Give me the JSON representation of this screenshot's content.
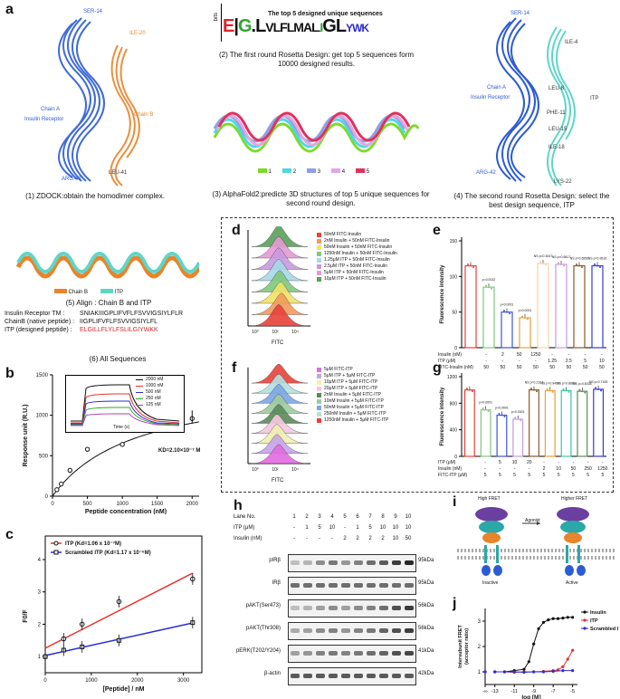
{
  "panels": {
    "a": {
      "label": "a",
      "fig1": {
        "caption": "(1) ZDOCK:obtain the homodimer  complex.",
        "labels": [
          "SER-14",
          "ILE-20",
          "Chain A",
          "Insulin Receptor",
          "Chain B",
          "ARG-42",
          "LEU-41"
        ]
      },
      "fig2": {
        "title": "The top 5 designed unique sequences",
        "caption": "(2) The first round Rosetta Design: get top 5 sequences form 10000 designed results.",
        "ylabel": "bits",
        "letters": "EGLVLFLFLMALLIGLYWK"
      },
      "fig3": {
        "caption": "(3) AlphaFold2:predicte 3D structures of top 5 unique sequences for second round design.",
        "legend": [
          "1",
          "2",
          "3",
          "4",
          "5"
        ],
        "colors": [
          "#7CDB2A",
          "#4FD7E8",
          "#8EA0E6",
          "#E5A7E0",
          "#E0315C"
        ]
      },
      "fig4": {
        "caption": "(4) The second round Rosetta Design: select the best design sequence,  ITP",
        "labels": [
          "SER-14",
          "ILE-4",
          "Chain A",
          "Insulin Receptor",
          "LEU-8",
          "ITP",
          "PHE-11",
          "LEU-15",
          "ILE-18",
          "ARG-42",
          "LYS-22"
        ]
      },
      "fig5": {
        "caption": "(5) Align : Chain B and ITP",
        "legend": [
          "Chain B",
          "ITP"
        ]
      },
      "fig6": {
        "caption": "(6) All Sequences",
        "rows": [
          {
            "name": "Insulin Receptor TM :",
            "seq": "SNIAKIIIGPLIFVFLFSVVIGSIYLFLR"
          },
          {
            "name": "ChainB (native peptide) :",
            "seq": "IIGPLIFVFLFSVVIGSIYLFL"
          },
          {
            "name": "ITP (designed peptide) :",
            "seq": "ELGILLFLYLFSLILGIYWKK"
          }
        ]
      }
    },
    "b": {
      "label": "b",
      "kd": "KD=2.10×10⁻⁷ M",
      "inset_legend": [
        "2000 nM",
        "1000 nM",
        "500 nM",
        "250 nM",
        "125 nM"
      ],
      "inset_xlabel": "Time (s)",
      "inset_ylabel": "Response unit (R.U.)"
    },
    "c": {
      "label": "c"
    },
    "d": {
      "label": "d",
      "xlabel": "FITC",
      "legend": [
        "50nM FITC-Insulin",
        "2nM Insulin + 50nM FITC-Insulin",
        "50nM Insulin + 50nM FITC-Insulin",
        "1250nM Insulin + 50nM FITC-Insulin",
        "1.25μM ITP + 50nM FITC-Insulin",
        "2.5μM ITP + 50nM FITC-Insulin",
        "5μM ITP + 50nM FITC-Insulin",
        "10μM ITP + 50nM FITC-Insulin"
      ],
      "colors": [
        "#E8423A",
        "#F39A5C",
        "#F3E268",
        "#7FC97F",
        "#A8D8E8",
        "#C79AE0",
        "#E69AD3",
        "#5AA05A"
      ]
    },
    "e": {
      "label": "e",
      "ylabel": "Fluorescence intensity",
      "rows": [
        {
          "name": "Insulin (nM)",
          "vals": [
            "-",
            "2",
            "50",
            "1250",
            "-",
            "-",
            "-",
            "-"
          ]
        },
        {
          "name": "ITP (μM)",
          "vals": [
            "-",
            "-",
            "-",
            "-",
            "1.25",
            "2.5",
            "5",
            "10"
          ]
        },
        {
          "name": "FITC-Insulin (nM)",
          "vals": [
            "50",
            "50",
            "50",
            "50",
            "50",
            "50",
            "50",
            "50"
          ]
        }
      ],
      "pvals": [
        "p=0.0022",
        "p<0.0001",
        "p<0.0001",
        "NS p=0.3047",
        "NS p=0.5817",
        "NS p=0.6556",
        "NS p=0.9516"
      ]
    },
    "f": {
      "label": "f",
      "xlabel": "FITC",
      "legend": [
        "5μM FITC-ITP",
        "5μM ITP + 5μM FITC-ITP",
        "10μM ITP + 5μM FITC-ITP",
        "20μM ITP + 5μM FITC-ITP",
        "2nM Insulin + 5μM FITC-ITP",
        "10nM Insulin + 5μM FITC-ITP",
        "50nM Insulin + 5μM FITC-ITP",
        "250nM Insulin + 5μM FITC-ITP",
        "1250nM Insulin + 5μM FITC-ITP"
      ],
      "colors": [
        "#E36BE0",
        "#C7A5E8",
        "#F0F0B0",
        "#F5C8E0",
        "#5A8A5A",
        "#9FCB9F",
        "#7DA7E8",
        "#B5E0E0",
        "#E8423A"
      ]
    },
    "g": {
      "label": "g",
      "ylabel": "Fluorescence intensity",
      "rows": [
        {
          "name": "ITP (μM)",
          "vals": [
            "-",
            "5",
            "10",
            "20",
            "-",
            "-",
            "-",
            "-",
            "-"
          ]
        },
        {
          "name": "Insulin (nM)",
          "vals": [
            "-",
            "-",
            "-",
            "-",
            "2",
            "10",
            "50",
            "250",
            "1250"
          ]
        },
        {
          "name": "FITC-ITP (μM)",
          "vals": [
            "5",
            "5",
            "5",
            "5",
            "5",
            "5",
            "5",
            "5",
            "5"
          ]
        }
      ],
      "pvals": [
        "p<0.0001",
        "p<0.0001",
        "p<0.0001",
        "NS p=0.2167",
        "NS p=0.9493",
        "NS p=0.8886",
        "NS p=0.8335",
        "NS p=0.7183"
      ]
    },
    "h": {
      "label": "h",
      "lanes": [
        "1",
        "2",
        "3",
        "4",
        "5",
        "6",
        "7",
        "8",
        "9",
        "10"
      ],
      "lane_title": "Lane No.",
      "itp_title": "ITP (μM)",
      "itp": [
        "-",
        "1",
        "5",
        "10",
        "-",
        "1",
        "5",
        "10",
        "10",
        "10"
      ],
      "insulin_title": "Insulin (nM)",
      "insulin": [
        "-",
        "-",
        "-",
        "-",
        "2",
        "2",
        "2",
        "2",
        "10",
        "50"
      ],
      "blots": [
        {
          "name": "pIRβ",
          "kda": "95kDa"
        },
        {
          "name": "IRβ",
          "kda": "95kDa"
        },
        {
          "name": "pAKT(Ser473)",
          "kda": "56kDa"
        },
        {
          "name": "pAKT(Thr308)",
          "kda": "56kDa"
        },
        {
          "name": "pERK(T202/Y204)",
          "kda": "41kDa"
        },
        {
          "name": "β-actin",
          "kda": "42kDa"
        }
      ]
    },
    "i": {
      "label": "i",
      "left_title": "High FRET",
      "right_title": "Higher FRET",
      "left_state": "Inactive",
      "right_state": "Active",
      "arrow": "Agonist"
    },
    "j": {
      "label": "j",
      "ylabel": "Intersubunit FRET (acceptor ratio)",
      "xlabel": "log [M]",
      "legend": [
        "Insulin",
        "ITP",
        "Scrambled ITP"
      ],
      "colors": [
        "#111111",
        "#E8302A",
        "#2B2BD6"
      ]
    }
  },
  "chart_data": [
    {
      "panel": "b",
      "type": "scatter",
      "xlabel": "Peptide concentration (nM)",
      "ylabel": "Response unit (R.U.)",
      "xlim": [
        0,
        2100
      ],
      "ylim": [
        0,
        1500
      ],
      "xticks": [
        0,
        500,
        1000,
        1500,
        2000
      ],
      "yticks": [
        0,
        500,
        1000,
        1500
      ],
      "x": [
        62.5,
        125,
        250,
        500,
        1000,
        2000
      ],
      "y": [
        80,
        150,
        320,
        580,
        640,
        960
      ]
    },
    {
      "panel": "c",
      "type": "scatter",
      "xlabel": "[Peptide] / nM",
      "ylabel": "F0/F",
      "xlim": [
        0,
        3400
      ],
      "ylim": [
        0.5,
        4
      ],
      "xticks": [
        0,
        1000,
        2000,
        3000
      ],
      "yticks": [
        1,
        2,
        3,
        4
      ],
      "series": [
        {
          "name": "ITP (Kd=1.06 x 10⁻⁷M)",
          "color": "#E8302A",
          "x": [
            0,
            400,
            800,
            1600,
            3200
          ],
          "y": [
            1.0,
            1.55,
            2.0,
            2.7,
            3.4
          ]
        },
        {
          "name": "Scrambled ITP (Kd=1.17 x 10⁻⁶M)",
          "color": "#2B2BD6",
          "x": [
            0,
            400,
            800,
            1600,
            3200
          ],
          "y": [
            1.0,
            1.2,
            1.3,
            1.5,
            2.05
          ]
        }
      ]
    },
    {
      "panel": "e",
      "type": "bar",
      "ylabel": "Fluorescence intensity",
      "ylim": [
        0,
        150
      ],
      "yticks": [
        0,
        50,
        100,
        150
      ],
      "values": [
        115,
        85,
        50,
        42,
        118,
        117,
        115,
        115
      ],
      "colors": [
        "#E8423A",
        "#7FC97F",
        "#3B56D6",
        "#E8A23A",
        "#F3D4A8",
        "#C79AE0",
        "#8A5A2A",
        "#3B3BD6"
      ]
    },
    {
      "panel": "g",
      "type": "bar",
      "ylabel": "Fluorescence intensity",
      "ylim": [
        0,
        1200
      ],
      "yticks": [
        0,
        400,
        800,
        1200
      ],
      "values": [
        1000,
        700,
        620,
        560,
        1000,
        990,
        990,
        980,
        1010
      ],
      "colors": [
        "#E8423A",
        "#7FC97F",
        "#3B56D6",
        "#C79AE0",
        "#8A5A2A",
        "#E8A23A",
        "#3BC7A0",
        "#5A8A5A",
        "#3B3BD6"
      ]
    },
    {
      "panel": "j",
      "type": "line",
      "xlabel": "log [M]",
      "ylabel": "Intersubunit FRET (acceptor ratio)",
      "xlim": [
        -13,
        -4.5
      ],
      "ylim": [
        0.5,
        3.5
      ],
      "xticks": [
        "-∞",
        "-13",
        "-11",
        "-9",
        "-7",
        "-5"
      ],
      "yticks": [
        1,
        2,
        3
      ],
      "series": [
        {
          "name": "Insulin",
          "color": "#111111",
          "x": [
            -13,
            -12,
            -11,
            -10,
            -9.5,
            -9,
            -8.5,
            -8,
            -7.5,
            -7,
            -6.5,
            -6,
            -5.5,
            -5
          ],
          "y": [
            1.0,
            1.0,
            1.05,
            1.1,
            1.4,
            2.1,
            2.7,
            2.95,
            3.05,
            3.1,
            3.1,
            3.12,
            3.15,
            3.15
          ]
        },
        {
          "name": "ITP",
          "color": "#E8302A",
          "x": [
            -13,
            -12,
            -11,
            -10,
            -9,
            -8,
            -7,
            -6.5,
            -6,
            -5.5,
            -5
          ],
          "y": [
            1.0,
            1.0,
            0.98,
            1.0,
            1.0,
            1.02,
            1.05,
            1.08,
            1.2,
            1.5,
            1.85
          ]
        },
        {
          "name": "Scrambled ITP",
          "color": "#2B2BD6",
          "x": [
            -13,
            -12,
            -11,
            -10,
            -9,
            -8,
            -7,
            -6,
            -5
          ],
          "y": [
            1.0,
            1.0,
            1.0,
            0.98,
            1.0,
            1.0,
            1.02,
            1.05,
            1.05
          ]
        }
      ]
    }
  ]
}
